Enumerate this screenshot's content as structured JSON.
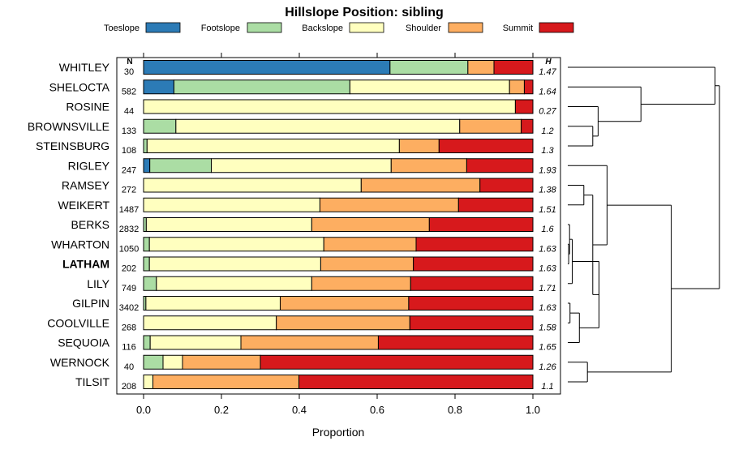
{
  "chart_data": {
    "type": "bar",
    "stacked": true,
    "horizontal": true,
    "title": "Hillslope Position: sibling",
    "xlabel": "Proportion",
    "ylabel": "",
    "xlim": [
      0,
      1
    ],
    "x_ticks": [
      "0.0",
      "0.2",
      "0.4",
      "0.6",
      "0.8",
      "1.0"
    ],
    "x_tick_values": [
      0,
      0.2,
      0.4,
      0.6,
      0.8,
      1.0
    ],
    "n_header": "N",
    "h_header": "H",
    "legend_position": "top",
    "legend": [
      {
        "name": "Toeslope",
        "color": "#2C7BB6"
      },
      {
        "name": "Footslope",
        "color": "#ABDDA4"
      },
      {
        "name": "Backslope",
        "color": "#FFFFBF"
      },
      {
        "name": "Shoulder",
        "color": "#FDAE61"
      },
      {
        "name": "Summit",
        "color": "#D7191C"
      }
    ],
    "rows": [
      {
        "name": "WHITLEY",
        "n": "30",
        "h": "1.47",
        "bold": false,
        "values": [
          0.633,
          0.2,
          0.0,
          0.067,
          0.1
        ]
      },
      {
        "name": "SHELOCTA",
        "n": "582",
        "h": "1.64",
        "bold": false,
        "values": [
          0.078,
          0.452,
          0.41,
          0.038,
          0.022
        ]
      },
      {
        "name": "ROSINE",
        "n": "44",
        "h": "0.27",
        "bold": false,
        "values": [
          0.0,
          0.0,
          0.955,
          0.0,
          0.045
        ]
      },
      {
        "name": "BROWNSVILLE",
        "n": "133",
        "h": "1.2",
        "bold": false,
        "values": [
          0.0,
          0.083,
          0.729,
          0.158,
          0.03
        ]
      },
      {
        "name": "STEINSBURG",
        "n": "108",
        "h": "1.3",
        "bold": false,
        "values": [
          0.0,
          0.009,
          0.648,
          0.102,
          0.241
        ]
      },
      {
        "name": "RIGLEY",
        "n": "247",
        "h": "1.93",
        "bold": false,
        "values": [
          0.016,
          0.158,
          0.462,
          0.194,
          0.17
        ]
      },
      {
        "name": "RAMSEY",
        "n": "272",
        "h": "1.38",
        "bold": false,
        "values": [
          0.0,
          0.0,
          0.559,
          0.305,
          0.136
        ]
      },
      {
        "name": "WEIKERT",
        "n": "1487",
        "h": "1.51",
        "bold": false,
        "values": [
          0.0,
          0.0,
          0.453,
          0.356,
          0.191
        ]
      },
      {
        "name": "BERKS",
        "n": "2832",
        "h": "1.6",
        "bold": false,
        "values": [
          0.0,
          0.007,
          0.425,
          0.302,
          0.266
        ]
      },
      {
        "name": "WHARTON",
        "n": "1050",
        "h": "1.63",
        "bold": false,
        "values": [
          0.0,
          0.015,
          0.448,
          0.237,
          0.3
        ]
      },
      {
        "name": "LATHAM",
        "n": "202",
        "h": "1.63",
        "bold": true,
        "values": [
          0.0,
          0.015,
          0.44,
          0.238,
          0.307
        ]
      },
      {
        "name": "LILY",
        "n": "749",
        "h": "1.71",
        "bold": false,
        "values": [
          0.0,
          0.033,
          0.399,
          0.254,
          0.314
        ]
      },
      {
        "name": "GILPIN",
        "n": "3402",
        "h": "1.63",
        "bold": false,
        "values": [
          0.0,
          0.006,
          0.345,
          0.33,
          0.319
        ]
      },
      {
        "name": "COOLVILLE",
        "n": "268",
        "h": "1.58",
        "bold": false,
        "values": [
          0.0,
          0.0,
          0.341,
          0.343,
          0.316
        ]
      },
      {
        "name": "SEQUOIA",
        "n": "116",
        "h": "1.65",
        "bold": false,
        "values": [
          0.0,
          0.017,
          0.233,
          0.353,
          0.397
        ]
      },
      {
        "name": "WERNOCK",
        "n": "40",
        "h": "1.26",
        "bold": false,
        "values": [
          0.0,
          0.05,
          0.05,
          0.2,
          0.7
        ]
      },
      {
        "name": "TILSIT",
        "n": "208",
        "h": "1.1",
        "bold": false,
        "values": [
          0.0,
          0.0,
          0.024,
          0.375,
          0.601
        ]
      }
    ],
    "dendrogram": {
      "type": "hierarchical-clustering",
      "merges": [
        {
          "left": "WHARTON",
          "right": "LATHAM",
          "height": 0.01
        },
        {
          "left": "BERKS",
          "right": "WHARTON+LATHAM",
          "height": 0.02
        },
        {
          "left": "GILPIN",
          "right": "COOLVILLE",
          "height": 0.025
        },
        {
          "left": "BERKS+WHARTON+LATHAM",
          "right": "LILY",
          "height": 0.05
        },
        {
          "left": "GILPIN+COOLVILLE",
          "right": "SEQUOIA",
          "height": 0.13
        },
        {
          "left": "RAMSEY",
          "right": "WEIKERT",
          "height": 0.18
        },
        {
          "left": "BERKS..LILY",
          "right": "GILPIN..SEQUOIA",
          "height": 0.35
        },
        {
          "left": "RAMSEY+WEIKERT",
          "right": "BERKS..SEQUOIA",
          "height": 0.28
        },
        {
          "left": "WERNOCK",
          "right": "TILSIT",
          "height": 0.22
        },
        {
          "left": "BROWNSVILLE",
          "right": "STEINSBURG",
          "height": 0.28
        },
        {
          "left": "ROSINE",
          "right": "BROWNSVILLE+STEINSBURG",
          "height": 0.34
        },
        {
          "left": "RIGLEY",
          "right": "RAMSEY..SEQUOIA",
          "height": 0.44
        },
        {
          "left": "SHELOCTA",
          "right": "ROSINE..STEINSBURG",
          "height": 0.82
        },
        {
          "left": "RIGLEY..SEQUOIA",
          "right": "WERNOCK+TILSIT",
          "height": 1.16
        },
        {
          "left": "WHITLEY",
          "right": "SHELOCTA..STEINSBURG",
          "height": 1.65
        },
        {
          "left": "WHITLEY..STEINSBURG",
          "right": "RIGLEY..TILSIT",
          "height": 1.7
        }
      ]
    }
  }
}
